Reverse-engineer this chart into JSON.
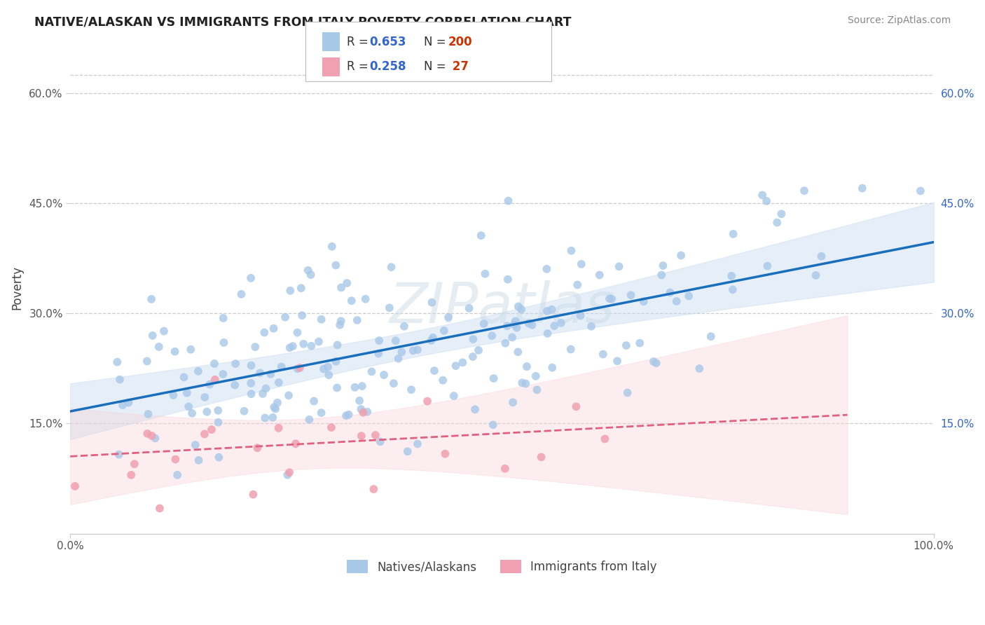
{
  "title": "NATIVE/ALASKAN VS IMMIGRANTS FROM ITALY POVERTY CORRELATION CHART",
  "source": "Source: ZipAtlas.com",
  "ylabel": "Poverty",
  "label1": "Natives/Alaskans",
  "label2": "Immigrants from Italy",
  "color1": "#a8c8e8",
  "color2": "#f0a0b0",
  "line_color1": "#1a6fbd",
  "line_color2": "#e06080",
  "ci_color1": "#c8ddf0",
  "ci_color2": "#f9d0d5",
  "watermark": "ZIPatlas",
  "background": "#ffffff",
  "title_color": "#333333",
  "r_color": "#3366cc",
  "n_color": "#cc3300",
  "seed1": 42,
  "seed2": 77,
  "N1": 200,
  "N2": 27,
  "R1": 0.653,
  "R2": 0.258,
  "ytick_vals": [
    0.15,
    0.3,
    0.45,
    0.6
  ],
  "ytick_labels": [
    "15.0%",
    "30.0%",
    "45.0%",
    "60.0%"
  ],
  "xlim": [
    0.0,
    1.0
  ],
  "ylim": [
    0.0,
    0.67
  ]
}
